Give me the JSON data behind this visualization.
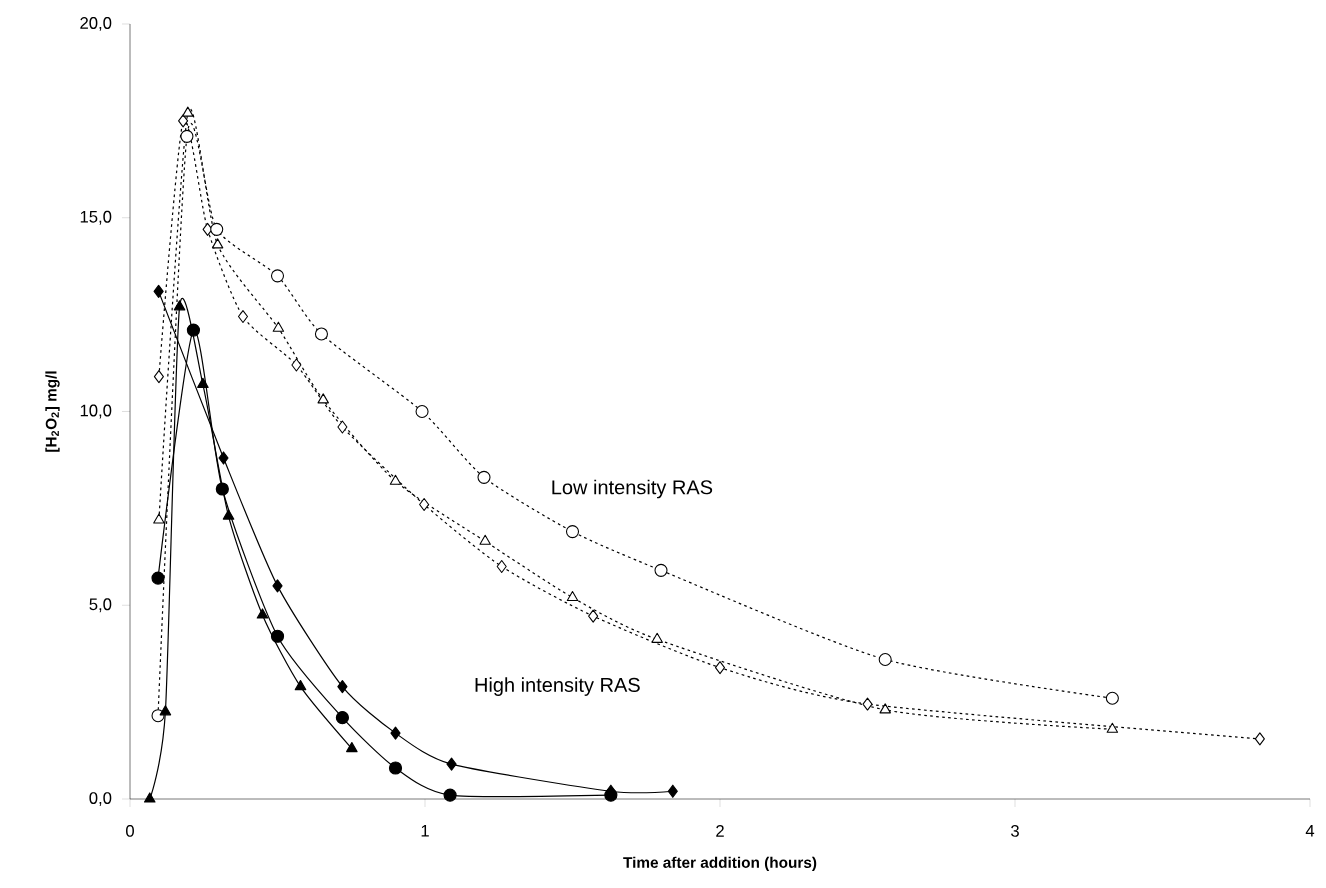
{
  "chart_data": {
    "type": "line",
    "xlabel": "Time after addition (hours)",
    "ylabel": "[H$_{2}$O$_{2}$] mg/l",
    "xlim": [
      0,
      4
    ],
    "xticks": [
      0,
      1,
      2,
      3,
      4
    ],
    "ylim": [
      0,
      20
    ],
    "yticks": [
      {
        "value": 0,
        "label": "0,0"
      },
      {
        "value": 5,
        "label": "5,0"
      },
      {
        "value": 10,
        "label": "10,0"
      },
      {
        "value": 15,
        "label": "15,0"
      },
      {
        "value": 20,
        "label": "20,0"
      }
    ],
    "grid": false,
    "series": [
      {
        "color": "#000000",
        "marker": "diamond",
        "line_style": "solid",
        "x": [
          0.097,
          0.317,
          0.5,
          0.72,
          0.9,
          1.09,
          1.63,
          1.84
        ],
        "values": [
          13.1,
          8.8,
          5.5,
          2.9,
          1.7,
          0.9,
          0.2,
          0.2
        ]
      },
      {
        "color": "#000000",
        "marker": "circle",
        "line_style": "solid",
        "x": [
          0.095,
          0.215,
          0.313,
          0.5,
          0.72,
          0.9,
          1.085,
          1.63
        ],
        "values": [
          5.7,
          12.1,
          8.0,
          4.2,
          2.1,
          0.8,
          0.1,
          0.1
        ]
      },
      {
        "color": "#000000",
        "marker": "triangle",
        "line_style": "solid",
        "x": [
          0.067,
          0.12,
          0.168,
          0.247,
          0.334,
          0.449,
          0.578,
          0.752
        ],
        "values": [
          0.0,
          2.25,
          12.7,
          10.7,
          7.3,
          4.75,
          2.9,
          1.3
        ]
      },
      {
        "color": "#000000",
        "marker": "circle",
        "line_style": "dotted",
        "x": [
          0.095,
          0.193,
          0.294,
          0.5,
          0.649,
          0.99,
          1.2,
          1.5,
          1.8,
          2.56,
          3.33
        ],
        "values": [
          2.15,
          17.1,
          14.7,
          13.5,
          12.0,
          10.0,
          8.3,
          6.9,
          5.9,
          3.6,
          2.6
        ]
      },
      {
        "color": "#000000",
        "marker": "triangle",
        "line_style": "dotted",
        "x": [
          0.098,
          0.196,
          0.297,
          0.503,
          0.655,
          0.9,
          1.204,
          1.5,
          1.787,
          2.56,
          3.33
        ],
        "values": [
          7.2,
          17.7,
          14.3,
          12.15,
          10.3,
          8.2,
          6.65,
          5.2,
          4.12,
          2.3,
          1.8
        ]
      },
      {
        "color": "#000000",
        "marker": "diamond",
        "line_style": "dotted",
        "x": [
          0.098,
          0.18,
          0.263,
          0.383,
          0.564,
          0.72,
          0.997,
          1.26,
          1.57,
          2.0,
          2.5,
          3.83
        ],
        "values": [
          10.9,
          17.5,
          14.7,
          12.45,
          11.2,
          9.6,
          7.6,
          6.0,
          4.72,
          3.39,
          2.45,
          1.55
        ]
      }
    ],
    "annotations": [
      "Low intensity RAS",
      "High intensity RAS"
    ]
  }
}
